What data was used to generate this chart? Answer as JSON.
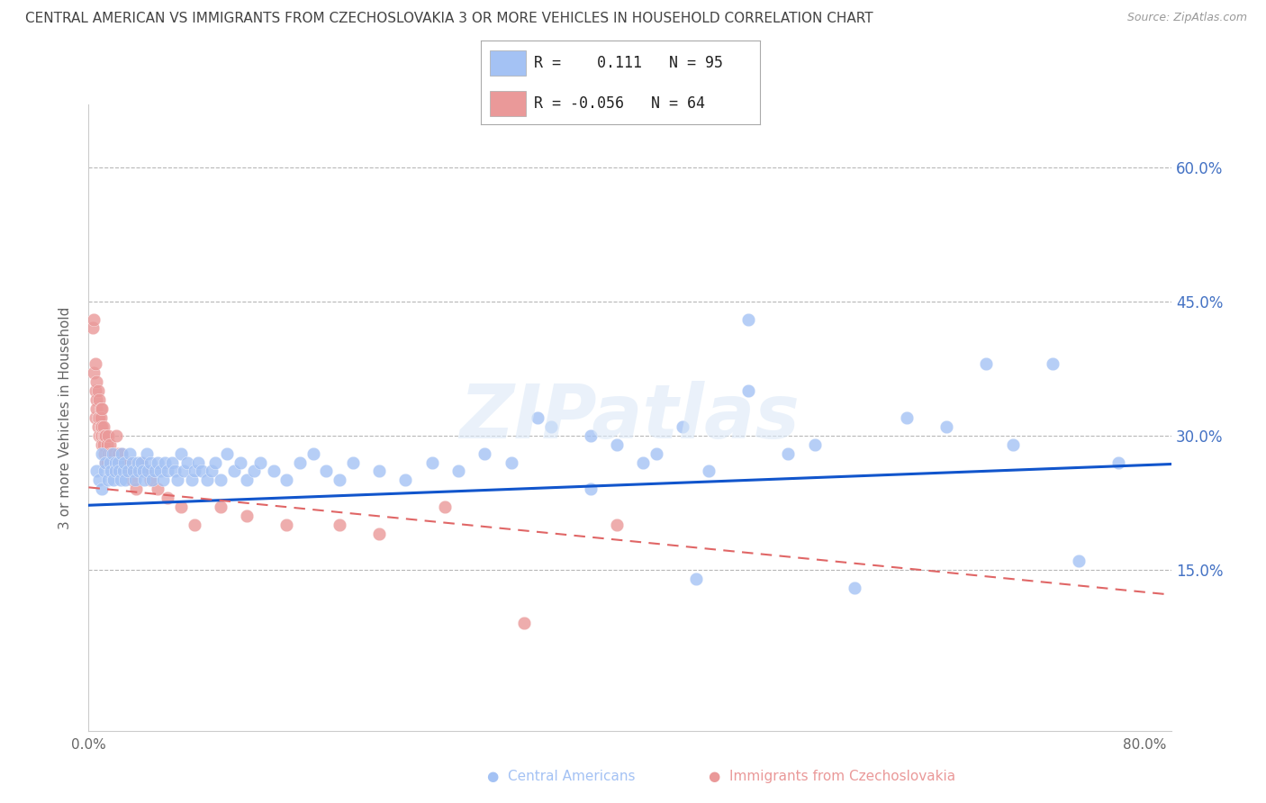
{
  "title": "CENTRAL AMERICAN VS IMMIGRANTS FROM CZECHOSLOVAKIA 3 OR MORE VEHICLES IN HOUSEHOLD CORRELATION CHART",
  "source": "Source: ZipAtlas.com",
  "ylabel_left": "3 or more Vehicles in Household",
  "xlim": [
    0.0,
    0.82
  ],
  "ylim": [
    -0.03,
    0.67
  ],
  "blue_color": "#a4c2f4",
  "pink_color": "#ea9999",
  "blue_line_color": "#1155cc",
  "pink_line_color": "#e06666",
  "title_color": "#434343",
  "axis_label_color": "#666666",
  "tick_color_right": "#4472c4",
  "grid_color": "#b7b7b7",
  "background_color": "#ffffff",
  "R_blue": 0.111,
  "N_blue": 95,
  "R_pink": -0.056,
  "N_pink": 64,
  "blue_trend_x": [
    0.0,
    0.82
  ],
  "blue_trend_y": [
    0.222,
    0.268
  ],
  "pink_trend_x": [
    0.0,
    0.82
  ],
  "pink_trend_y": [
    0.242,
    0.122
  ],
  "blue_x": [
    0.006,
    0.008,
    0.01,
    0.01,
    0.012,
    0.013,
    0.015,
    0.016,
    0.017,
    0.018,
    0.019,
    0.02,
    0.02,
    0.022,
    0.023,
    0.024,
    0.025,
    0.026,
    0.027,
    0.028,
    0.03,
    0.031,
    0.033,
    0.034,
    0.035,
    0.037,
    0.038,
    0.04,
    0.041,
    0.042,
    0.044,
    0.045,
    0.047,
    0.048,
    0.05,
    0.052,
    0.054,
    0.056,
    0.058,
    0.06,
    0.063,
    0.065,
    0.067,
    0.07,
    0.072,
    0.075,
    0.078,
    0.08,
    0.083,
    0.086,
    0.09,
    0.093,
    0.096,
    0.1,
    0.105,
    0.11,
    0.115,
    0.12,
    0.125,
    0.13,
    0.14,
    0.15,
    0.16,
    0.17,
    0.18,
    0.19,
    0.2,
    0.22,
    0.24,
    0.26,
    0.28,
    0.3,
    0.32,
    0.35,
    0.38,
    0.4,
    0.43,
    0.45,
    0.47,
    0.5,
    0.53,
    0.55,
    0.58,
    0.62,
    0.65,
    0.68,
    0.7,
    0.73,
    0.75,
    0.78,
    0.5,
    0.34,
    0.42,
    0.38,
    0.46
  ],
  "blue_y": [
    0.26,
    0.25,
    0.28,
    0.24,
    0.26,
    0.27,
    0.25,
    0.27,
    0.26,
    0.28,
    0.25,
    0.27,
    0.26,
    0.27,
    0.26,
    0.25,
    0.28,
    0.26,
    0.27,
    0.25,
    0.26,
    0.28,
    0.27,
    0.26,
    0.25,
    0.27,
    0.26,
    0.27,
    0.26,
    0.25,
    0.28,
    0.26,
    0.27,
    0.25,
    0.26,
    0.27,
    0.26,
    0.25,
    0.27,
    0.26,
    0.27,
    0.26,
    0.25,
    0.28,
    0.26,
    0.27,
    0.25,
    0.26,
    0.27,
    0.26,
    0.25,
    0.26,
    0.27,
    0.25,
    0.28,
    0.26,
    0.27,
    0.25,
    0.26,
    0.27,
    0.26,
    0.25,
    0.27,
    0.28,
    0.26,
    0.25,
    0.27,
    0.26,
    0.25,
    0.27,
    0.26,
    0.28,
    0.27,
    0.31,
    0.3,
    0.29,
    0.28,
    0.31,
    0.26,
    0.35,
    0.28,
    0.29,
    0.13,
    0.32,
    0.31,
    0.38,
    0.29,
    0.38,
    0.16,
    0.27,
    0.43,
    0.32,
    0.27,
    0.24,
    0.14
  ],
  "pink_x": [
    0.003,
    0.004,
    0.004,
    0.005,
    0.005,
    0.005,
    0.006,
    0.006,
    0.006,
    0.007,
    0.007,
    0.007,
    0.008,
    0.008,
    0.008,
    0.009,
    0.009,
    0.009,
    0.009,
    0.01,
    0.01,
    0.01,
    0.01,
    0.011,
    0.011,
    0.011,
    0.012,
    0.012,
    0.013,
    0.013,
    0.014,
    0.014,
    0.015,
    0.015,
    0.016,
    0.016,
    0.017,
    0.018,
    0.019,
    0.02,
    0.021,
    0.022,
    0.024,
    0.025,
    0.027,
    0.029,
    0.031,
    0.033,
    0.036,
    0.04,
    0.043,
    0.047,
    0.052,
    0.06,
    0.07,
    0.08,
    0.1,
    0.12,
    0.15,
    0.19,
    0.22,
    0.27,
    0.33,
    0.4
  ],
  "pink_y": [
    0.42,
    0.37,
    0.43,
    0.35,
    0.38,
    0.32,
    0.34,
    0.33,
    0.36,
    0.32,
    0.35,
    0.31,
    0.32,
    0.34,
    0.3,
    0.33,
    0.31,
    0.3,
    0.32,
    0.3,
    0.31,
    0.29,
    0.33,
    0.3,
    0.31,
    0.29,
    0.3,
    0.28,
    0.3,
    0.27,
    0.29,
    0.27,
    0.3,
    0.28,
    0.29,
    0.27,
    0.28,
    0.27,
    0.28,
    0.26,
    0.3,
    0.28,
    0.27,
    0.28,
    0.26,
    0.27,
    0.26,
    0.25,
    0.24,
    0.27,
    0.26,
    0.25,
    0.24,
    0.23,
    0.22,
    0.2,
    0.22,
    0.21,
    0.2,
    0.2,
    0.19,
    0.22,
    0.09,
    0.2
  ]
}
